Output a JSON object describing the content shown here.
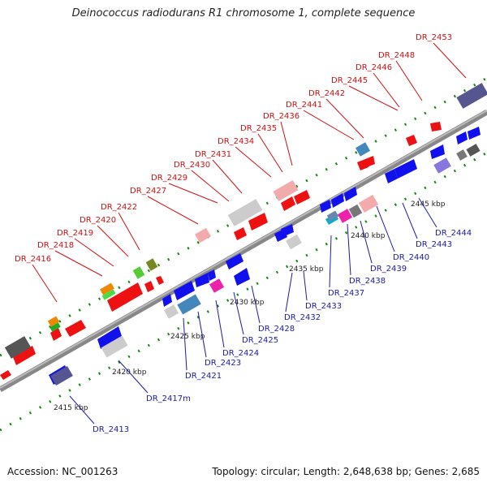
{
  "title": "Deinococcus radiodurans R1 chromosome 1, complete sequence",
  "footer": {
    "accession": "Accession: NC_001263",
    "stats": "Topology: circular; Length: 2,648,638 bp; Genes: 2,685"
  },
  "ticks": [
    {
      "label": "2415 kbp",
      "kbp": 2415
    },
    {
      "label": "2420 kbp",
      "kbp": 2420
    },
    {
      "label": "2425 kbp",
      "kbp": 2425
    },
    {
      "label": "2430 kbp",
      "kbp": 2430
    },
    {
      "label": "2435 kbp",
      "kbp": 2435
    },
    {
      "label": "2440 kbp",
      "kbp": 2440
    },
    {
      "label": "2445 kbp",
      "kbp": 2445
    }
  ],
  "genes_top": [
    "DR_2416",
    "DR_2418",
    "DR_2419",
    "DR_2420",
    "DR_2422",
    "DR_2427",
    "DR_2429",
    "DR_2430",
    "DR_2431",
    "DR_2434",
    "DR_2435",
    "DR_2436",
    "DR_2441",
    "DR_2442",
    "DR_2445",
    "DR_2446",
    "DR_2448",
    "DR_2453"
  ],
  "genes_bottom": [
    "DR_2413",
    "DR_2417m",
    "DR_2421",
    "DR_2423",
    "DR_2424",
    "DR_2425",
    "DR_2428",
    "DR_2432",
    "DR_2433",
    "DR_2437",
    "DR_2438",
    "DR_2439",
    "DR_2440",
    "DR_2443",
    "DR_2444"
  ],
  "colors": {
    "forward_gene": "#ee1111",
    "reverse_gene": "#1111ee",
    "backbone": "#888888",
    "tick": "#118811",
    "label_top": "#cc1111",
    "label_bottom": "#1a1aa6"
  }
}
